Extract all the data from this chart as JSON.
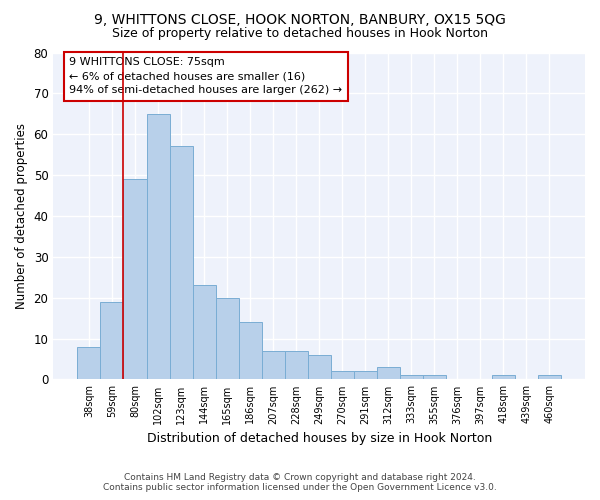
{
  "title1": "9, WHITTONS CLOSE, HOOK NORTON, BANBURY, OX15 5QG",
  "title2": "Size of property relative to detached houses in Hook Norton",
  "xlabel": "Distribution of detached houses by size in Hook Norton",
  "ylabel": "Number of detached properties",
  "categories": [
    "38sqm",
    "59sqm",
    "80sqm",
    "102sqm",
    "123sqm",
    "144sqm",
    "165sqm",
    "186sqm",
    "207sqm",
    "228sqm",
    "249sqm",
    "270sqm",
    "291sqm",
    "312sqm",
    "333sqm",
    "355sqm",
    "376sqm",
    "397sqm",
    "418sqm",
    "439sqm",
    "460sqm"
  ],
  "values": [
    8,
    19,
    49,
    65,
    57,
    23,
    20,
    14,
    7,
    7,
    6,
    2,
    2,
    3,
    1,
    1,
    0,
    0,
    1,
    0,
    1
  ],
  "bar_color": "#b8d0ea",
  "bar_edge_color": "#7aadd4",
  "background_color": "#eef2fb",
  "vline_color": "#cc0000",
  "vline_x_index": 1.5,
  "annotation_lines": [
    "9 WHITTONS CLOSE: 75sqm",
    "← 6% of detached houses are smaller (16)",
    "94% of semi-detached houses are larger (262) →"
  ],
  "footer1": "Contains HM Land Registry data © Crown copyright and database right 2024.",
  "footer2": "Contains public sector information licensed under the Open Government Licence v3.0.",
  "ylim": [
    0,
    80
  ],
  "yticks": [
    0,
    10,
    20,
    30,
    40,
    50,
    60,
    70,
    80
  ]
}
